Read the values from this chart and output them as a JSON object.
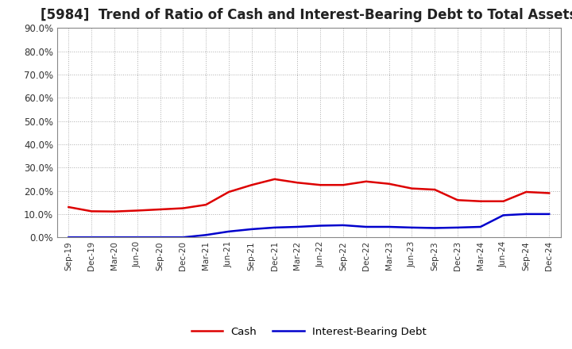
{
  "title": "[5984]  Trend of Ratio of Cash and Interest-Bearing Debt to Total Assets",
  "x_labels": [
    "Sep-19",
    "Dec-19",
    "Mar-20",
    "Jun-20",
    "Sep-20",
    "Dec-20",
    "Mar-21",
    "Jun-21",
    "Sep-21",
    "Dec-21",
    "Mar-22",
    "Jun-22",
    "Sep-22",
    "Dec-22",
    "Mar-23",
    "Jun-23",
    "Sep-23",
    "Dec-23",
    "Mar-24",
    "Jun-24",
    "Sep-24",
    "Dec-24"
  ],
  "cash": [
    13.0,
    11.2,
    11.1,
    11.5,
    12.0,
    12.5,
    14.0,
    19.5,
    22.5,
    25.0,
    23.5,
    22.5,
    22.5,
    24.0,
    23.0,
    21.0,
    20.5,
    16.0,
    15.5,
    15.5,
    19.5,
    19.0
  ],
  "debt": [
    0.0,
    0.0,
    0.0,
    0.0,
    0.0,
    0.0,
    1.0,
    2.5,
    3.5,
    4.2,
    4.5,
    5.0,
    5.2,
    4.5,
    4.5,
    4.2,
    4.0,
    4.2,
    4.5,
    9.5,
    10.0,
    10.0
  ],
  "cash_color": "#dd0000",
  "debt_color": "#0000cc",
  "ylim": [
    0,
    90
  ],
  "yticks": [
    0.0,
    10.0,
    20.0,
    30.0,
    40.0,
    50.0,
    60.0,
    70.0,
    80.0,
    90.0
  ],
  "background_color": "#ffffff",
  "grid_color": "#999999",
  "title_fontsize": 12,
  "legend_cash": "Cash",
  "legend_debt": "Interest-Bearing Debt",
  "line_width": 1.8
}
